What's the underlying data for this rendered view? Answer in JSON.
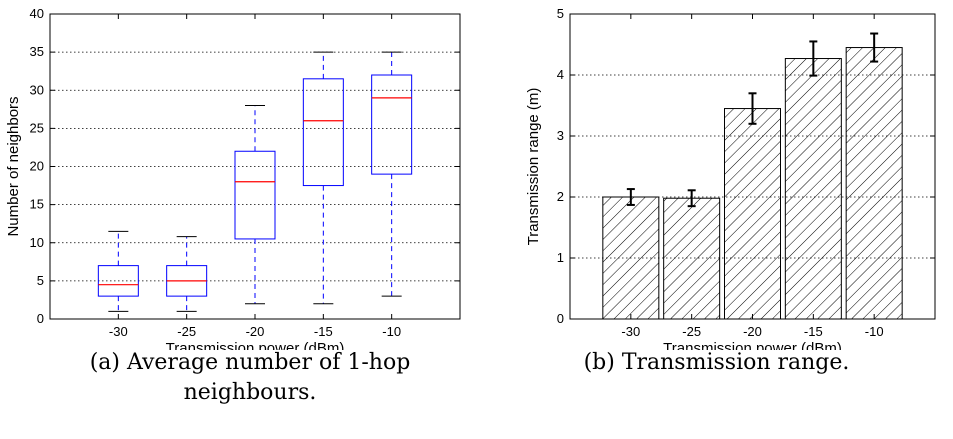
{
  "chart_data": [
    {
      "type": "box",
      "xlabel": "Transmission power (dBm)",
      "ylabel": "Number of neighbors",
      "categories": [
        "-30",
        "-25",
        "-20",
        "-15",
        "-10"
      ],
      "ylim": [
        0,
        40
      ],
      "yticks": [
        0,
        5,
        10,
        15,
        20,
        25,
        30,
        35,
        40
      ],
      "grid": "horizontal-dotted",
      "boxes": [
        {
          "min": 1,
          "q1": 3,
          "median": 4.5,
          "q3": 7,
          "max": 11.5
        },
        {
          "min": 1,
          "q1": 3,
          "median": 5,
          "q3": 7,
          "max": 10.8
        },
        {
          "min": 2,
          "q1": 10.5,
          "median": 18,
          "q3": 22,
          "max": 28
        },
        {
          "min": 2,
          "q1": 17.5,
          "median": 26,
          "q3": 31.5,
          "max": 35
        },
        {
          "min": 3,
          "q1": 19,
          "median": 29,
          "q3": 32,
          "max": 35
        }
      ],
      "colors": {
        "box": "#0000ff",
        "median": "#ff0000",
        "whisker": "#0000ff",
        "cap": "#000000"
      }
    },
    {
      "type": "bar",
      "xlabel": "Transmission power (dBm)",
      "ylabel": "Transmission range (m)",
      "categories": [
        "-30",
        "-25",
        "-20",
        "-15",
        "-10"
      ],
      "values": [
        2.0,
        1.98,
        3.45,
        4.27,
        4.45
      ],
      "errors": [
        0.13,
        0.13,
        0.25,
        0.28,
        0.23
      ],
      "ylim": [
        0,
        5
      ],
      "yticks": [
        0,
        1,
        2,
        3,
        4,
        5
      ],
      "grid": "horizontal-dotted",
      "hatch": "diagonal"
    }
  ],
  "captions": {
    "a_line1": "(a) Average number of 1-hop",
    "a_line2": "neighbours.",
    "b": "(b) Transmission range."
  }
}
